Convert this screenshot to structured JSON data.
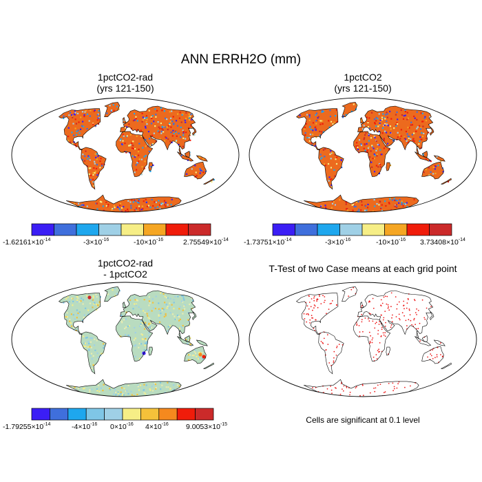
{
  "title": "ANN ERRH2O (mm)",
  "palettes": {
    "eight": [
      "#3b1ef5",
      "#3f6fdc",
      "#1ea7ee",
      "#9fd0e6",
      "#f6ee86",
      "#f5a623",
      "#f01c0a",
      "#cb2a2a"
    ],
    "ten": [
      "#3b1ef5",
      "#3f6fdc",
      "#1ea7ee",
      "#7fc6e6",
      "#9fd0e6",
      "#f6ee86",
      "#f5c13a",
      "#f5891e",
      "#f01c0a",
      "#cb2a2a"
    ]
  },
  "colors": {
    "land_case": "#ec6a1e",
    "land_diff": "#b9dcc0",
    "stipple": "#ee1c1c"
  },
  "chart_data": [
    {
      "type": "heatmap",
      "title_line1": "1pctCO2-rad",
      "title_line2": "(yrs 121-150)",
      "colorbar": {
        "min_label": {
          "mant": "-1.62161",
          "exp": "-14"
        },
        "max_label": {
          "mant": "2.75549",
          "exp": "-14"
        },
        "tick_labels": [
          {
            "mant": "-3",
            "exp": "-16"
          },
          {
            "mant": "-10",
            "exp": "-16"
          }
        ]
      }
    },
    {
      "type": "heatmap",
      "title_line1": "1pctCO2",
      "title_line2": "(yrs 121-150)",
      "colorbar": {
        "min_label": {
          "mant": "-1.73751",
          "exp": "-14"
        },
        "max_label": {
          "mant": "3.73408",
          "exp": "-14"
        },
        "tick_labels": [
          {
            "mant": "-3",
            "exp": "-16"
          },
          {
            "mant": "-10",
            "exp": "-16"
          }
        ]
      }
    },
    {
      "type": "heatmap",
      "title_line1": "1pctCO2-rad",
      "title_line2": "- 1pctCO2",
      "colorbar": {
        "min_label": {
          "mant": "-1.79255",
          "exp": "-14"
        },
        "max_label": {
          "mant": "9.0053",
          "exp": "-15"
        },
        "tick_labels": [
          {
            "mant": "-4",
            "exp": "-16"
          },
          {
            "mant": "0",
            "exp": "-16"
          },
          {
            "mant": "4",
            "exp": "-16"
          }
        ]
      }
    },
    {
      "type": "scatter",
      "title_line1": "T-Test of two Case means at each grid point",
      "note": "Cells are significant at 0.1 level"
    }
  ]
}
